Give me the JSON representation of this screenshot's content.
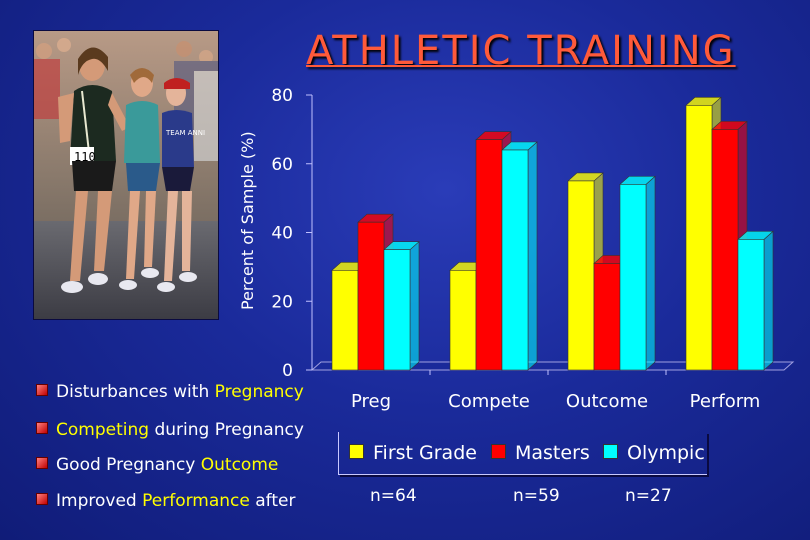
{
  "title": "ATHLETIC TRAINING",
  "photo": {
    "bib_number": "110",
    "shirt_text": "TEAM ANNI"
  },
  "bullets": [
    {
      "parts": [
        {
          "text": "Disturbances with ",
          "hl": false
        },
        {
          "text": "Pregnancy",
          "hl": true
        }
      ]
    },
    {
      "parts": [
        {
          "text": "Competing",
          "hl": true
        },
        {
          "text": " during Pregnancy",
          "hl": false
        }
      ]
    },
    {
      "parts": [
        {
          "text": "Good Pregnancy ",
          "hl": false
        },
        {
          "text": "Outcome",
          "hl": true
        }
      ]
    },
    {
      "parts": [
        {
          "text": "Improved ",
          "hl": false
        },
        {
          "text": "Performance",
          "hl": true
        },
        {
          "text": " after",
          "hl": false
        }
      ]
    }
  ],
  "sample_sizes": [
    "n=64",
    "n=59",
    "n=27"
  ],
  "colors": {
    "accent_title": "#ff5a3a",
    "highlight": "#ffff00",
    "background": "#1a2a9a"
  },
  "chart_data": {
    "type": "bar",
    "title": "ATHLETIC TRAINING",
    "ylabel": "Percent of Sample (%)",
    "xlabel": "",
    "ylim": [
      0,
      80
    ],
    "yticks": [
      0,
      20,
      40,
      60,
      80
    ],
    "categories": [
      "Preg",
      "Compete",
      "Outcome",
      "Perform"
    ],
    "series": [
      {
        "name": "First Grade",
        "color": "#ffff00",
        "values": [
          29,
          29,
          55,
          77
        ]
      },
      {
        "name": "Masters",
        "color": "#ff0000",
        "values": [
          43,
          67,
          31,
          70
        ]
      },
      {
        "name": "Olympic",
        "color": "#00ffff",
        "values": [
          35,
          64,
          54,
          38
        ]
      }
    ],
    "legend_position": "bottom",
    "grid": false
  }
}
